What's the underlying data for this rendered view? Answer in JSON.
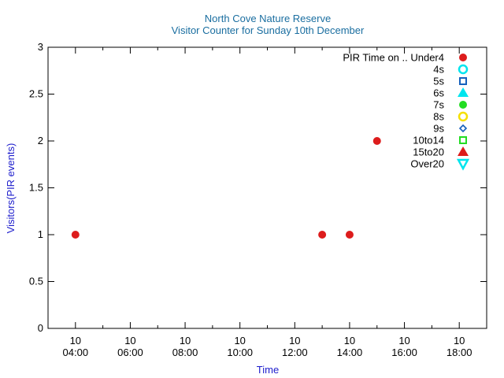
{
  "chart_data": {
    "type": "scatter",
    "title": "North Cove Nature Reserve",
    "subtitle": "Visitor Counter for Sunday 10th December",
    "xlabel": "Time",
    "ylabel": "Visitors(PIR events)",
    "xlim": [
      "03:00",
      "19:00"
    ],
    "ylim": [
      0,
      3
    ],
    "x_ticks": [
      {
        "value": "04:00",
        "label_top": "10",
        "label_bottom": "04:00"
      },
      {
        "value": "06:00",
        "label_top": "10",
        "label_bottom": "06:00"
      },
      {
        "value": "08:00",
        "label_top": "10",
        "label_bottom": "08:00"
      },
      {
        "value": "10:00",
        "label_top": "10",
        "label_bottom": "10:00"
      },
      {
        "value": "12:00",
        "label_top": "10",
        "label_bottom": "12:00"
      },
      {
        "value": "14:00",
        "label_top": "10",
        "label_bottom": "14:00"
      },
      {
        "value": "16:00",
        "label_top": "10",
        "label_bottom": "16:00"
      },
      {
        "value": "18:00",
        "label_top": "10",
        "label_bottom": "18:00"
      }
    ],
    "y_ticks": [
      "0",
      "0.5",
      "1",
      "1.5",
      "2",
      "2.5",
      "3"
    ],
    "y_tick_values": [
      0,
      0.5,
      1,
      1.5,
      2,
      2.5,
      3
    ],
    "grid": false,
    "legend_placement": "top-right",
    "legend_title": "PIR Time on ..",
    "series": [
      {
        "name": "Under4",
        "color": "#dd1c1c",
        "marker": "filled-circle",
        "points": [
          {
            "x": "04:00",
            "y": 1
          },
          {
            "x": "13:00",
            "y": 1
          },
          {
            "x": "14:00",
            "y": 1
          },
          {
            "x": "15:00",
            "y": 2
          }
        ]
      },
      {
        "name": "4s",
        "color": "#00e5ee",
        "marker": "open-circle",
        "points": []
      },
      {
        "name": "5s",
        "color": "#1560bd",
        "marker": "open-square",
        "points": []
      },
      {
        "name": "6s",
        "color": "#00e5ee",
        "marker": "filled-triangle",
        "points": []
      },
      {
        "name": "7s",
        "color": "#22dd22",
        "marker": "filled-circle",
        "points": []
      },
      {
        "name": "8s",
        "color": "#f5e000",
        "marker": "open-circle",
        "points": []
      },
      {
        "name": "9s",
        "color": "#1560bd",
        "marker": "open-diamond",
        "points": []
      },
      {
        "name": "10to14",
        "color": "#22dd22",
        "marker": "open-square",
        "points": []
      },
      {
        "name": "15to20",
        "color": "#dd1c1c",
        "marker": "filled-triangle",
        "points": []
      },
      {
        "name": "Over20",
        "color": "#00e5ee",
        "marker": "open-triangle-down",
        "points": []
      }
    ],
    "colors": {
      "title": "#1a6ea0",
      "axis_label": "#1c1ccc",
      "axis": "#000000"
    }
  }
}
